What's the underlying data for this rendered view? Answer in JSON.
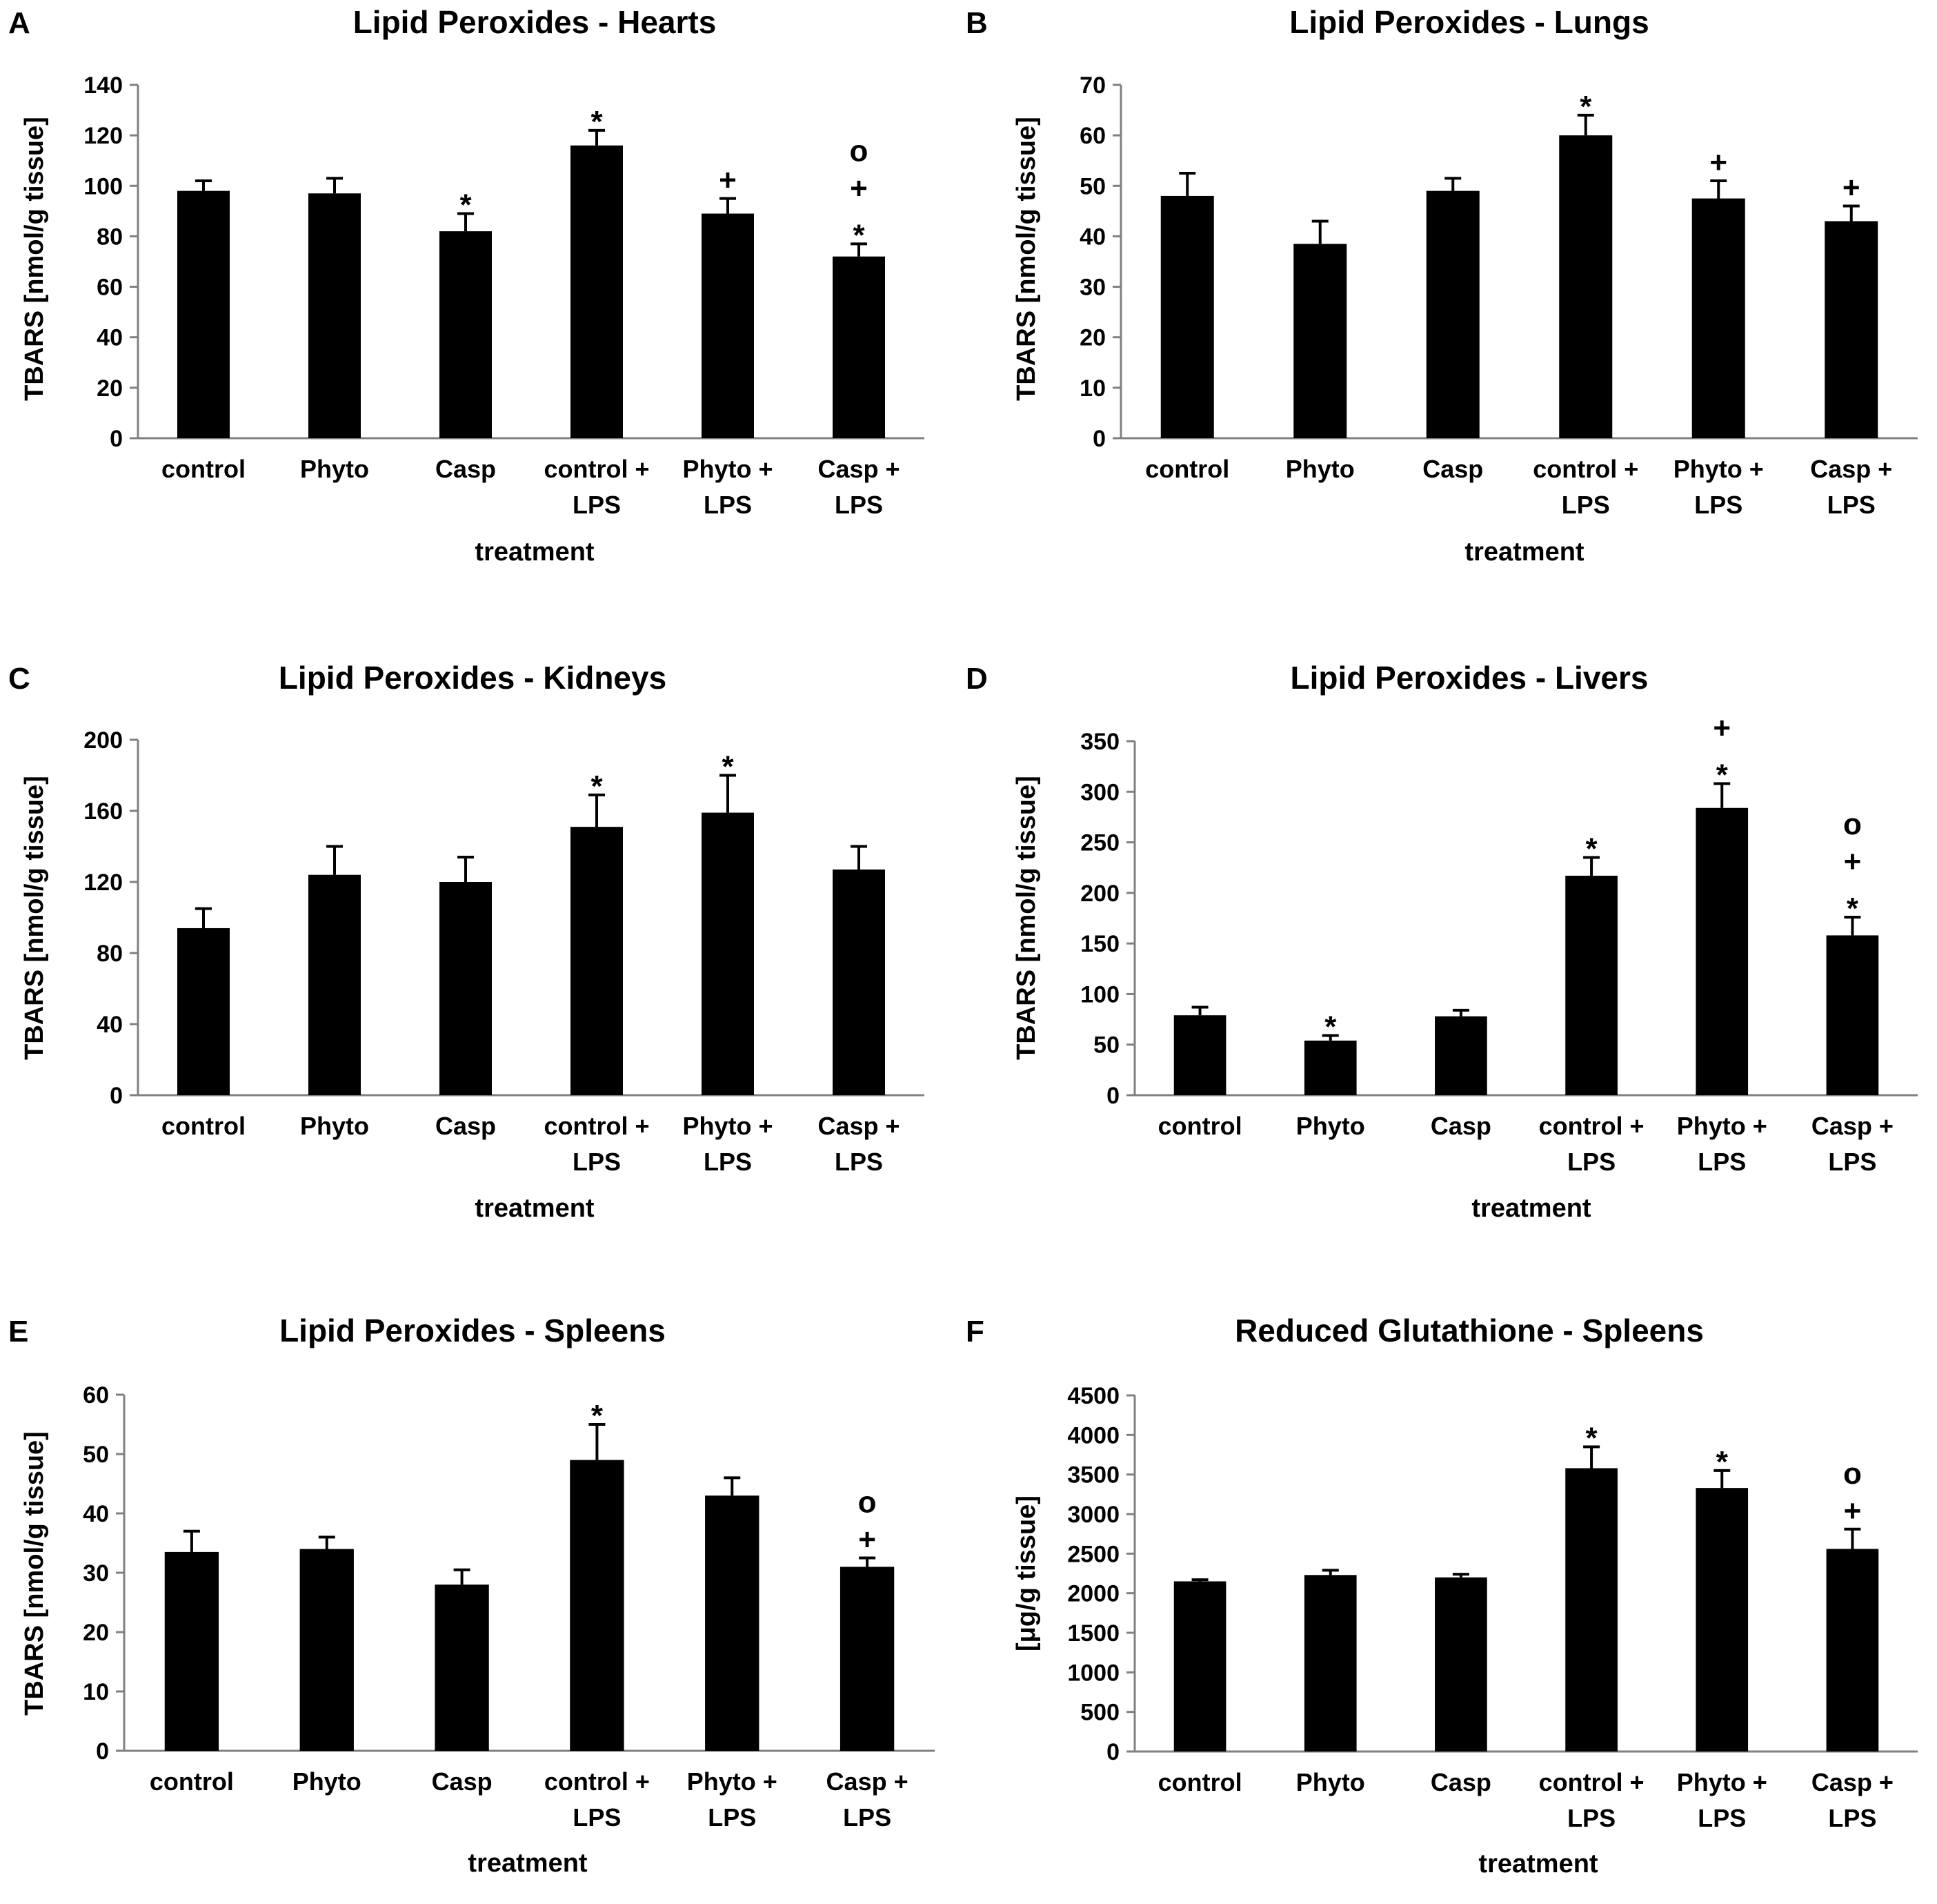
{
  "chart_data": [
    {
      "panel": "A",
      "type": "bar",
      "title": "Lipid Peroxides - Hearts",
      "xlabel": "treatment",
      "ylabel": "TBARS [nmol/g tissue]",
      "ylim": [
        0,
        140
      ],
      "yticks": [
        0,
        20,
        40,
        60,
        80,
        100,
        120,
        140
      ],
      "categories": [
        [
          "control"
        ],
        [
          "Phyto"
        ],
        [
          "Casp"
        ],
        [
          "control +",
          "LPS"
        ],
        [
          "Phyto +",
          "LPS"
        ],
        [
          "Casp +",
          "LPS"
        ]
      ],
      "values": [
        98,
        97,
        82,
        116,
        89,
        72
      ],
      "errors": [
        4,
        6,
        7,
        6,
        6,
        5
      ],
      "significance": [
        [],
        [],
        [
          "*"
        ],
        [
          "*"
        ],
        [
          "+"
        ],
        [
          "o",
          "+",
          "*"
        ]
      ]
    },
    {
      "panel": "B",
      "type": "bar",
      "title": "Lipid Peroxides - Lungs",
      "xlabel": "treatment",
      "ylabel": "TBARS [nmol/g tissue]",
      "ylim": [
        0,
        70
      ],
      "yticks": [
        0,
        10,
        20,
        30,
        40,
        50,
        60,
        70
      ],
      "categories": [
        [
          "control"
        ],
        [
          "Phyto"
        ],
        [
          "Casp"
        ],
        [
          "control +",
          "LPS"
        ],
        [
          "Phyto +",
          "LPS"
        ],
        [
          "Casp +",
          "LPS"
        ]
      ],
      "values": [
        48,
        38.5,
        49,
        60,
        47.5,
        43
      ],
      "errors": [
        4.5,
        4.5,
        2.5,
        4,
        3.5,
        3
      ],
      "significance": [
        [],
        [],
        [],
        [
          "*"
        ],
        [
          "+"
        ],
        [
          "+"
        ]
      ]
    },
    {
      "panel": "C",
      "type": "bar",
      "title": "Lipid Peroxides - Kidneys",
      "xlabel": "treatment",
      "ylabel": "TBARS [nmol/g tissue]",
      "ylim": [
        0,
        200
      ],
      "yticks": [
        0,
        40,
        80,
        120,
        160,
        200
      ],
      "categories": [
        [
          "control"
        ],
        [
          "Phyto"
        ],
        [
          "Casp"
        ],
        [
          "control +",
          "LPS"
        ],
        [
          "Phyto +",
          "LPS"
        ],
        [
          "Casp +",
          "LPS"
        ]
      ],
      "values": [
        94,
        124,
        120,
        151,
        159,
        127
      ],
      "errors": [
        11,
        16,
        14,
        18,
        21,
        13
      ],
      "significance": [
        [],
        [],
        [],
        [
          "*"
        ],
        [
          "*"
        ],
        []
      ]
    },
    {
      "panel": "D",
      "type": "bar",
      "title": "Lipid Peroxides - Livers",
      "xlabel": "treatment",
      "ylabel": "TBARS [nmol/g tissue]",
      "ylim": [
        0,
        350
      ],
      "yticks": [
        0,
        50,
        100,
        150,
        200,
        250,
        300,
        350
      ],
      "categories": [
        [
          "control"
        ],
        [
          "Phyto"
        ],
        [
          "Casp"
        ],
        [
          "control +",
          "LPS"
        ],
        [
          "Phyto +",
          "LPS"
        ],
        [
          "Casp +",
          "LPS"
        ]
      ],
      "values": [
        79,
        54,
        78,
        217,
        284,
        158
      ],
      "errors": [
        8,
        5,
        6,
        18,
        24,
        18
      ],
      "significance": [
        [],
        [
          "*"
        ],
        [],
        [
          "*"
        ],
        [
          "+",
          "*"
        ],
        [
          "o",
          "+",
          "*"
        ]
      ]
    },
    {
      "panel": "E",
      "type": "bar",
      "title": "Lipid Peroxides - Spleens",
      "xlabel": "treatment",
      "ylabel": "TBARS [nmol/g tissue]",
      "ylim": [
        0,
        60
      ],
      "yticks": [
        0,
        10,
        20,
        30,
        40,
        50,
        60
      ],
      "categories": [
        [
          "control"
        ],
        [
          "Phyto"
        ],
        [
          "Casp"
        ],
        [
          "control +",
          "LPS"
        ],
        [
          "Phyto +",
          "LPS"
        ],
        [
          "Casp +",
          "LPS"
        ]
      ],
      "values": [
        33.5,
        34,
        28,
        49,
        43,
        31
      ],
      "errors": [
        3.5,
        2,
        2.5,
        6,
        3,
        1.5
      ],
      "significance": [
        [],
        [],
        [],
        [
          "*"
        ],
        [],
        [
          "o",
          "+"
        ]
      ]
    },
    {
      "panel": "F",
      "type": "bar",
      "title": "Reduced Glutathione - Spleens",
      "xlabel": "treatment",
      "ylabel": "[μg/g tissue]",
      "ylim": [
        0,
        4500
      ],
      "yticks": [
        0,
        500,
        1000,
        1500,
        2000,
        2500,
        3000,
        3500,
        4000,
        4500
      ],
      "categories": [
        [
          "control"
        ],
        [
          "Phyto"
        ],
        [
          "Casp"
        ],
        [
          "control +",
          "LPS"
        ],
        [
          "Phyto +",
          "LPS"
        ],
        [
          "Casp +",
          "LPS"
        ]
      ],
      "values": [
        2150,
        2230,
        2200,
        3580,
        3330,
        2560
      ],
      "errors": [
        20,
        60,
        40,
        270,
        220,
        250
      ],
      "significance": [
        [],
        [],
        [],
        [
          "*"
        ],
        [
          "*"
        ],
        [
          "o",
          "+"
        ]
      ]
    }
  ]
}
